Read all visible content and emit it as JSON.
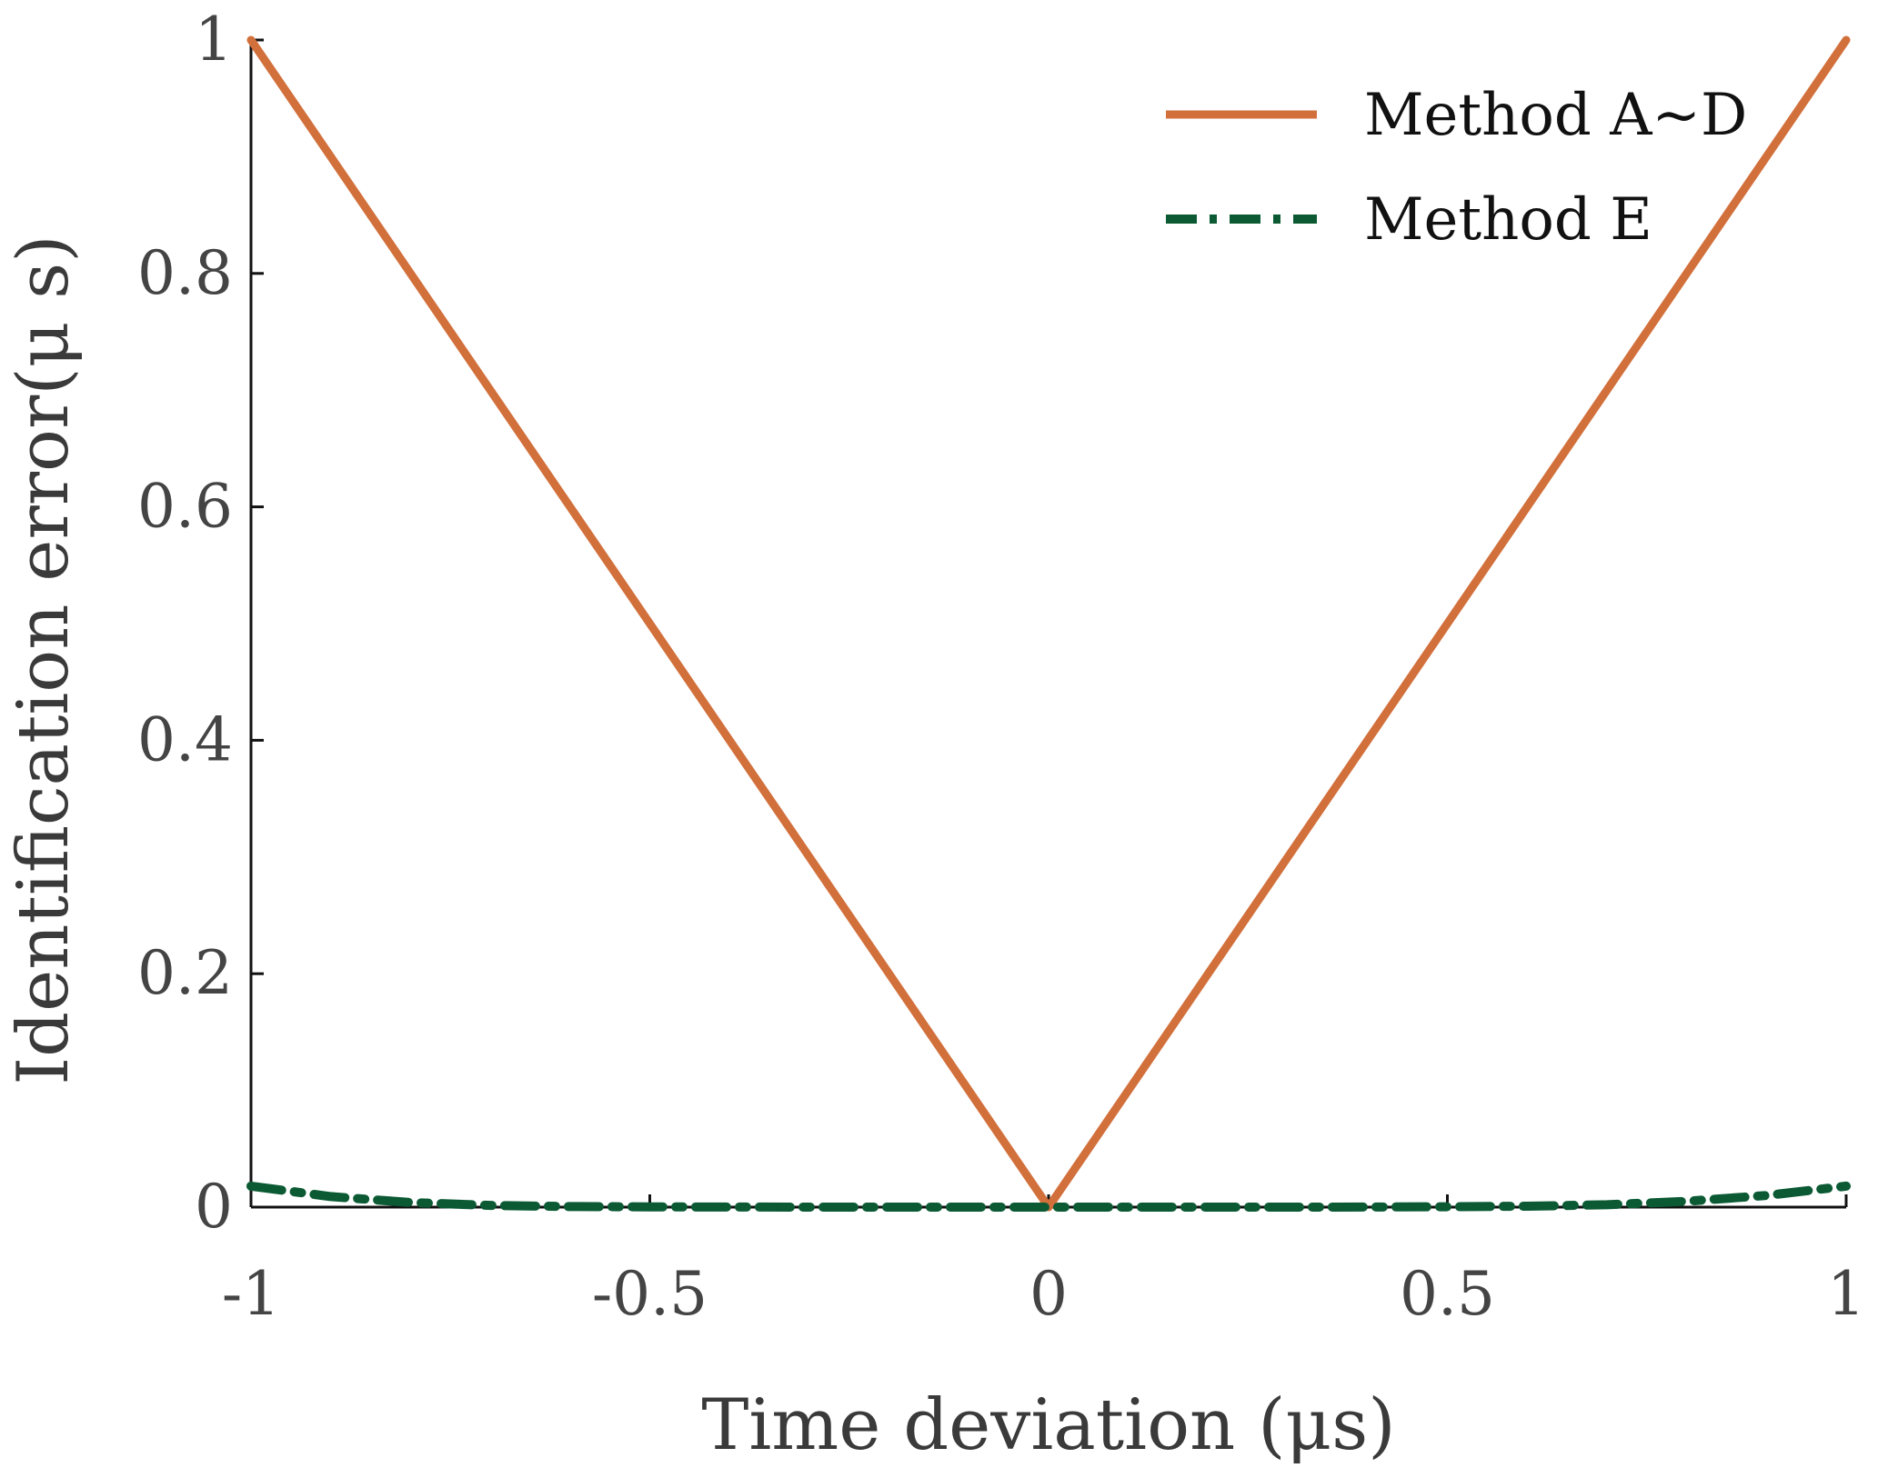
{
  "chart_data": {
    "type": "line",
    "title": "",
    "xlabel": "Time deviation (μs)",
    "ylabel": "Identification error(μ s)",
    "xlim": [
      -1,
      1
    ],
    "ylim": [
      0,
      1
    ],
    "xticks": [
      -1,
      -0.5,
      0,
      0.5,
      1
    ],
    "xtick_labels": [
      "-1",
      "-0.5",
      "0",
      "0.5",
      "1"
    ],
    "yticks": [
      0,
      0.2,
      0.4,
      0.6,
      0.8,
      1
    ],
    "ytick_labels": [
      "0",
      "0.2",
      "0.4",
      "0.6",
      "0.8",
      "1"
    ],
    "grid": false,
    "legend_position": "top-right",
    "series": [
      {
        "name": "Method A~D",
        "color": "#d2703c",
        "style": "solid",
        "x": [
          -1,
          -0.5,
          0,
          0.5,
          1
        ],
        "y": [
          1,
          0.5,
          0,
          0.5,
          1
        ]
      },
      {
        "name": "Method E",
        "color": "#0b5a34",
        "style": "dashdot",
        "x": [
          -1,
          -0.9,
          -0.8,
          -0.7,
          -0.6,
          -0.5,
          -0.4,
          -0.3,
          -0.2,
          -0.1,
          0,
          0.1,
          0.2,
          0.3,
          0.4,
          0.5,
          0.6,
          0.7,
          0.8,
          0.9,
          1
        ],
        "y": [
          0.018,
          0.009,
          0.004,
          0.0015,
          0.0005,
          0.0002,
          0.0001,
          0,
          0,
          0,
          0,
          0,
          0,
          0,
          0.0001,
          0.0003,
          0.0008,
          0.002,
          0.005,
          0.01,
          0.018
        ]
      }
    ]
  }
}
